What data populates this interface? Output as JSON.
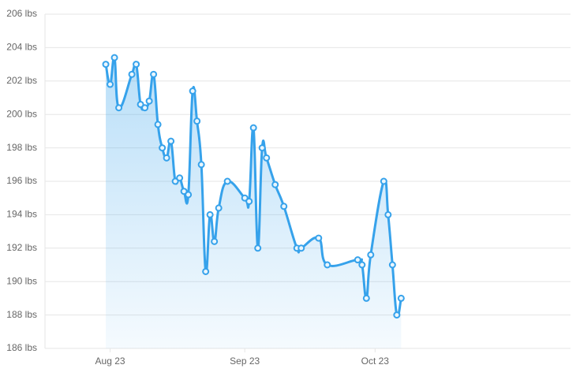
{
  "chart_data": {
    "type": "line",
    "x": [
      -1,
      0,
      1,
      2,
      5,
      6,
      7,
      8,
      9,
      10,
      11,
      12,
      13,
      14,
      15,
      16,
      17,
      18,
      19,
      20,
      21,
      22,
      23,
      24,
      25,
      27,
      31,
      32,
      33,
      34,
      35,
      36,
      38,
      40,
      43,
      44,
      48,
      50,
      57,
      58,
      59,
      60,
      63,
      64,
      65,
      66,
      67
    ],
    "series": [
      {
        "color": "#36a2eb",
        "values": [
          203.0,
          201.8,
          203.4,
          200.4,
          202.4,
          203.0,
          200.6,
          200.4,
          200.8,
          202.4,
          199.4,
          198.0,
          197.4,
          198.4,
          196.0,
          196.2,
          195.4,
          195.2,
          201.4,
          199.6,
          197.0,
          190.6,
          194.0,
          192.4,
          194.4,
          196.0,
          195.0,
          194.8,
          199.2,
          192.0,
          198.0,
          197.4,
          195.8,
          194.5,
          192.0,
          192.0,
          192.6,
          191.0,
          191.3,
          191.0,
          189.0,
          191.6,
          196.0,
          194.0,
          191.0,
          188.0,
          189.0
        ]
      }
    ],
    "xlim": [
      -15,
      106
    ],
    "xticks": [
      {
        "value": 0,
        "label": "Aug 23"
      },
      {
        "value": 31,
        "label": "Sep 23"
      },
      {
        "value": 61,
        "label": "Oct 23"
      }
    ],
    "ylim": [
      186,
      206
    ],
    "yticks": [
      {
        "value": 186,
        "label": "186 lbs"
      },
      {
        "value": 188,
        "label": "188 lbs"
      },
      {
        "value": 190,
        "label": "190 lbs"
      },
      {
        "value": 192,
        "label": "192 lbs"
      },
      {
        "value": 194,
        "label": "194 lbs"
      },
      {
        "value": 196,
        "label": "196 lbs"
      },
      {
        "value": 198,
        "label": "198 lbs"
      },
      {
        "value": 200,
        "label": "200 lbs"
      },
      {
        "value": 202,
        "label": "202 lbs"
      },
      {
        "value": 204,
        "label": "204 lbs"
      },
      {
        "value": 206,
        "label": "206 lbs"
      }
    ],
    "grid": true,
    "area": true
  }
}
